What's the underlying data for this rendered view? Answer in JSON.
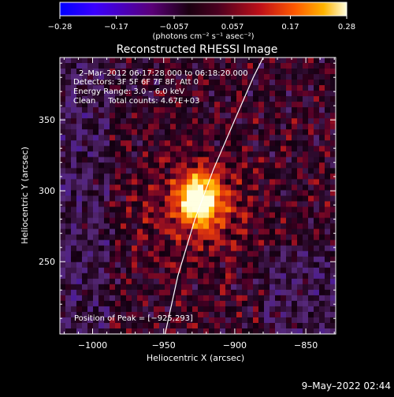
{
  "chart_data": {
    "type": "heatmap",
    "title": "Reconstructed RHESSI Image",
    "xlabel": "Heliocentric X (arcsec)",
    "ylabel": "Heliocentric Y (arcsec)",
    "xlim": [
      -1023,
      -829
    ],
    "ylim": [
      199,
      394
    ],
    "x_ticks": [
      {
        "value": -1000,
        "label": "−1000"
      },
      {
        "value": -950,
        "label": "−950"
      },
      {
        "value": -900,
        "label": "−900"
      },
      {
        "value": -850,
        "label": "−850"
      }
    ],
    "y_ticks": [
      {
        "value": 250,
        "label": "250"
      },
      {
        "value": 300,
        "label": "300"
      },
      {
        "value": 350,
        "label": "350"
      }
    ],
    "colorbar": {
      "range": [
        -0.28,
        0.28
      ],
      "ticks": [
        {
          "value": -0.28,
          "label": "−0.28"
        },
        {
          "value": -0.17,
          "label": "−0.17"
        },
        {
          "value": -0.057,
          "label": "−0.057"
        },
        {
          "value": 0.057,
          "label": "0.057"
        },
        {
          "value": 0.17,
          "label": "0.17"
        },
        {
          "value": 0.28,
          "label": "0.28"
        }
      ],
      "unit_label": "(photons cm⁻² s⁻¹ asec⁻²)"
    },
    "info_lines": [
      "2–Mar–2012 06:17:28.000 to 06:18:20.000",
      "Detectors: 3F 5F 6F 7F 8F, Att 0",
      "Energy Range: 3.0 – 6.0 keV",
      "Clean     Total counts: 4.67E+03"
    ],
    "peak_label": "Position of Peak = [−925,293]",
    "peak": {
      "x": -925,
      "y": 293
    },
    "limb_curve": [
      {
        "x": -949,
        "y": 199
      },
      {
        "x": -940,
        "y": 240
      },
      {
        "x": -928,
        "y": 280
      },
      {
        "x": -915,
        "y": 315
      },
      {
        "x": -900,
        "y": 350
      },
      {
        "x": -887,
        "y": 380
      },
      {
        "x": -880,
        "y": 394
      }
    ]
  },
  "footer": {
    "timestamp": "9–May–2022 02:44"
  }
}
